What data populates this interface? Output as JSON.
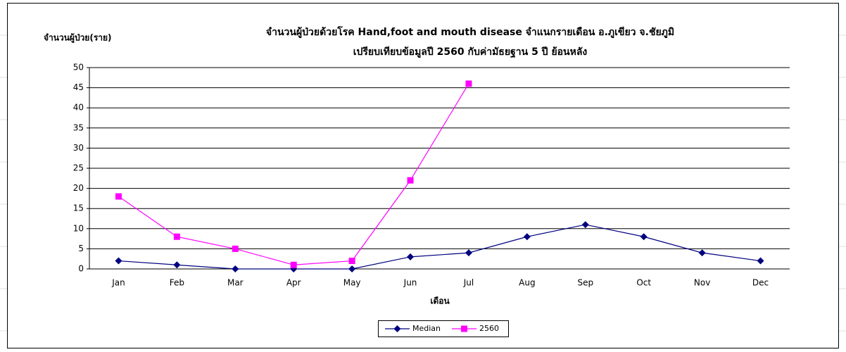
{
  "chart_data": {
    "type": "line",
    "title": "จำนวนผู้ป่วยด้วยโรค  Hand,foot and mouth disease  จำแนกรายเดือน    อ.ภูเขียว จ.ชัยภูมิ",
    "subtitle": "เปรียบเทียบข้อมูลปี  2560  กับค่ามัธยฐาน 5 ปี ย้อนหลัง",
    "y_label": "จำนวนผู้ป่วย(ราย)",
    "x_label": "เดือน",
    "categories": [
      "Jan",
      "Feb",
      "Mar",
      "Apr",
      "May",
      "Jun",
      "Jul",
      "Aug",
      "Sep",
      "Oct",
      "Nov",
      "Dec"
    ],
    "series": [
      {
        "name": "Median",
        "color": "#000080",
        "marker": "diamond",
        "values": [
          2,
          1,
          0,
          0,
          0,
          3,
          4,
          8,
          11,
          8,
          4,
          2
        ]
      },
      {
        "name": "2560",
        "color": "#ff00ff",
        "marker": "square",
        "values": [
          18,
          8,
          5,
          1,
          2,
          22,
          46,
          null,
          null,
          null,
          null,
          null
        ]
      }
    ],
    "ylim": [
      0,
      50
    ],
    "yticks": [
      0,
      5,
      10,
      15,
      20,
      25,
      30,
      35,
      40,
      45,
      50
    ],
    "grid": true,
    "legend": "bottom"
  }
}
